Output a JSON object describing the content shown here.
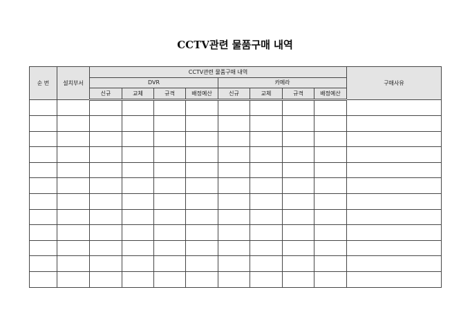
{
  "title": "CCTV관련 물품구매 내역",
  "table": {
    "col_no": "순 번",
    "col_dept": "설치부서",
    "group": "CCTV관련 물품구매 내역",
    "dvr": "DVR",
    "camera": "카메라",
    "reason": "구매사유",
    "sub": [
      "신규",
      "교체",
      "규격",
      "배정예산"
    ],
    "row_count": 12
  }
}
